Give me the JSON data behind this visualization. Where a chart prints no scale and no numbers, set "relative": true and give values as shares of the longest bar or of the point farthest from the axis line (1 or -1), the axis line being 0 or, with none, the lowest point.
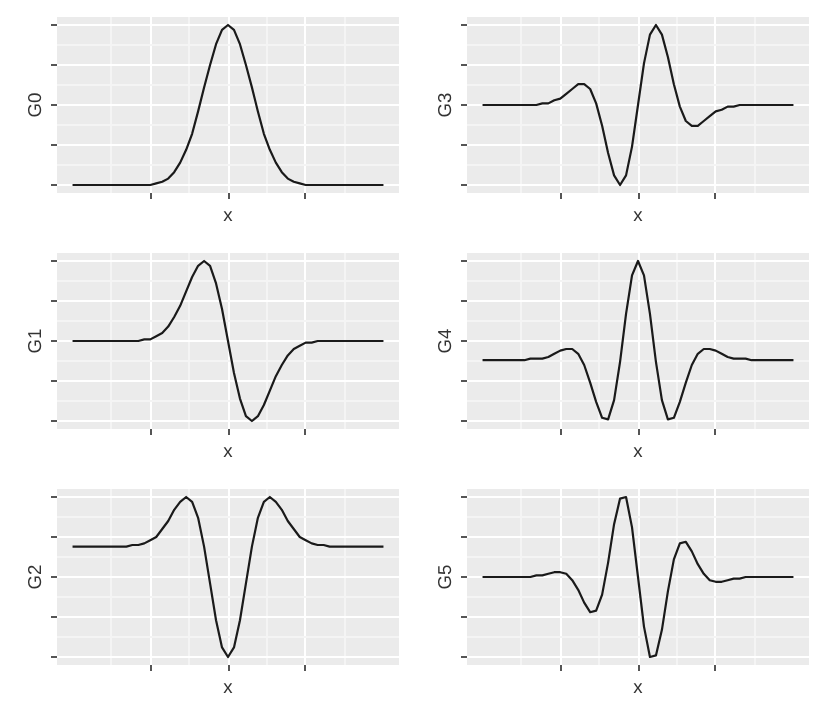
{
  "chart_data": [
    {
      "type": "line",
      "relative": true,
      "grid": true,
      "xlabel": "x",
      "ylabel": "G0",
      "categories": [
        null,
        null,
        null,
        null,
        null,
        null,
        null,
        null,
        null,
        null,
        null,
        null,
        null,
        null,
        null,
        null,
        null,
        null,
        null,
        null,
        null,
        null,
        null,
        null,
        null,
        null,
        null,
        null,
        null,
        null,
        null,
        null,
        null,
        null,
        null,
        null,
        null,
        null,
        null,
        null,
        null,
        null,
        null,
        null,
        null,
        null,
        null,
        null,
        null,
        null,
        null,
        null,
        null
      ],
      "series": [
        {
          "color": "#1a1a1a",
          "values": [
            0,
            0,
            0,
            0,
            0,
            0,
            0,
            0,
            0,
            0,
            0,
            0,
            0,
            0,
            0.01,
            0.02,
            0.04,
            0.08,
            0.14,
            0.22,
            0.32,
            0.46,
            0.61,
            0.75,
            0.88,
            0.97,
            1,
            0.97,
            0.88,
            0.75,
            0.61,
            0.46,
            0.32,
            0.22,
            0.14,
            0.08,
            0.04,
            0.02,
            0.01,
            0,
            0,
            0,
            0,
            0,
            0,
            0,
            0,
            0,
            0,
            0,
            0,
            0,
            0
          ]
        }
      ]
    },
    {
      "type": "line",
      "relative": true,
      "grid": true,
      "xlabel": "x",
      "ylabel": "G3",
      "categories": [
        null,
        null,
        null,
        null,
        null,
        null,
        null,
        null,
        null,
        null,
        null,
        null,
        null,
        null,
        null,
        null,
        null,
        null,
        null,
        null,
        null,
        null,
        null,
        null,
        null,
        null,
        null,
        null,
        null,
        null,
        null,
        null,
        null,
        null,
        null,
        null,
        null,
        null,
        null,
        null,
        null,
        null,
        null,
        null,
        null,
        null,
        null,
        null,
        null,
        null,
        null,
        null,
        null
      ],
      "series": [
        {
          "color": "#1a1a1a",
          "values": [
            0.5,
            0.5,
            0.5,
            0.5,
            0.5,
            0.5,
            0.5,
            0.5,
            0.5,
            0.5,
            0.51,
            0.51,
            0.53,
            0.54,
            0.57,
            0.6,
            0.63,
            0.63,
            0.6,
            0.51,
            0.37,
            0.2,
            0.06,
            0,
            0.06,
            0.24,
            0.5,
            0.76,
            0.94,
            1,
            0.94,
            0.8,
            0.63,
            0.49,
            0.4,
            0.37,
            0.37,
            0.4,
            0.43,
            0.46,
            0.47,
            0.49,
            0.49,
            0.5,
            0.5,
            0.5,
            0.5,
            0.5,
            0.5,
            0.5,
            0.5,
            0.5,
            0.5
          ]
        }
      ]
    },
    {
      "type": "line",
      "relative": true,
      "grid": true,
      "xlabel": "x",
      "ylabel": "G1",
      "categories": [
        null,
        null,
        null,
        null,
        null,
        null,
        null,
        null,
        null,
        null,
        null,
        null,
        null,
        null,
        null,
        null,
        null,
        null,
        null,
        null,
        null,
        null,
        null,
        null,
        null,
        null,
        null,
        null,
        null,
        null,
        null,
        null,
        null,
        null,
        null,
        null,
        null,
        null,
        null,
        null,
        null,
        null,
        null,
        null,
        null,
        null,
        null,
        null,
        null,
        null,
        null,
        null,
        null
      ],
      "series": [
        {
          "color": "#1a1a1a",
          "values": [
            0.5,
            0.5,
            0.5,
            0.5,
            0.5,
            0.5,
            0.5,
            0.5,
            0.5,
            0.5,
            0.5,
            0.5,
            0.51,
            0.51,
            0.53,
            0.55,
            0.59,
            0.65,
            0.72,
            0.81,
            0.9,
            0.97,
            1,
            0.97,
            0.86,
            0.7,
            0.5,
            0.3,
            0.14,
            0.03,
            0,
            0.03,
            0.1,
            0.19,
            0.28,
            0.35,
            0.41,
            0.45,
            0.47,
            0.49,
            0.49,
            0.5,
            0.5,
            0.5,
            0.5,
            0.5,
            0.5,
            0.5,
            0.5,
            0.5,
            0.5,
            0.5,
            0.5
          ]
        }
      ]
    },
    {
      "type": "line",
      "relative": true,
      "grid": true,
      "xlabel": "x",
      "ylabel": "G4",
      "categories": [
        null,
        null,
        null,
        null,
        null,
        null,
        null,
        null,
        null,
        null,
        null,
        null,
        null,
        null,
        null,
        null,
        null,
        null,
        null,
        null,
        null,
        null,
        null,
        null,
        null,
        null,
        null,
        null,
        null,
        null,
        null,
        null,
        null,
        null,
        null,
        null,
        null,
        null,
        null,
        null,
        null,
        null,
        null,
        null,
        null,
        null,
        null,
        null,
        null,
        null,
        null,
        null,
        null
      ],
      "series": [
        {
          "color": "#1a1a1a",
          "values": [
            0.38,
            0.38,
            0.38,
            0.38,
            0.38,
            0.38,
            0.38,
            0.38,
            0.39,
            0.39,
            0.39,
            0.4,
            0.42,
            0.44,
            0.45,
            0.45,
            0.42,
            0.35,
            0.24,
            0.12,
            0.02,
            0.01,
            0.13,
            0.37,
            0.67,
            0.91,
            1,
            0.91,
            0.67,
            0.37,
            0.13,
            0.01,
            0.02,
            0.12,
            0.24,
            0.35,
            0.42,
            0.45,
            0.45,
            0.44,
            0.42,
            0.4,
            0.39,
            0.39,
            0.39,
            0.38,
            0.38,
            0.38,
            0.38,
            0.38,
            0.38,
            0.38,
            0.38
          ]
        }
      ]
    },
    {
      "type": "line",
      "relative": true,
      "grid": true,
      "xlabel": "x",
      "ylabel": "G2",
      "categories": [
        null,
        null,
        null,
        null,
        null,
        null,
        null,
        null,
        null,
        null,
        null,
        null,
        null,
        null,
        null,
        null,
        null,
        null,
        null,
        null,
        null,
        null,
        null,
        null,
        null,
        null,
        null,
        null,
        null,
        null,
        null,
        null,
        null,
        null,
        null,
        null,
        null,
        null,
        null,
        null,
        null,
        null,
        null,
        null,
        null,
        null,
        null,
        null,
        null,
        null,
        null,
        null,
        null
      ],
      "series": [
        {
          "color": "#1a1a1a",
          "values": [
            0.69,
            0.69,
            0.69,
            0.69,
            0.69,
            0.69,
            0.69,
            0.69,
            0.69,
            0.69,
            0.7,
            0.7,
            0.71,
            0.73,
            0.75,
            0.8,
            0.85,
            0.92,
            0.97,
            1,
            0.97,
            0.87,
            0.69,
            0.46,
            0.23,
            0.06,
            0,
            0.06,
            0.23,
            0.46,
            0.69,
            0.87,
            0.97,
            1,
            0.97,
            0.92,
            0.85,
            0.8,
            0.75,
            0.73,
            0.71,
            0.7,
            0.7,
            0.69,
            0.69,
            0.69,
            0.69,
            0.69,
            0.69,
            0.69,
            0.69,
            0.69,
            0.69
          ]
        }
      ]
    },
    {
      "type": "line",
      "relative": true,
      "grid": true,
      "xlabel": "x",
      "ylabel": "G5",
      "categories": [
        null,
        null,
        null,
        null,
        null,
        null,
        null,
        null,
        null,
        null,
        null,
        null,
        null,
        null,
        null,
        null,
        null,
        null,
        null,
        null,
        null,
        null,
        null,
        null,
        null,
        null,
        null,
        null,
        null,
        null,
        null,
        null,
        null,
        null,
        null,
        null,
        null,
        null,
        null,
        null,
        null,
        null,
        null,
        null,
        null,
        null,
        null,
        null,
        null,
        null,
        null,
        null,
        null
      ],
      "series": [
        {
          "color": "#1a1a1a",
          "values": [
            0.5,
            0.5,
            0.5,
            0.5,
            0.5,
            0.5,
            0.5,
            0.5,
            0.5,
            0.51,
            0.51,
            0.52,
            0.53,
            0.53,
            0.52,
            0.48,
            0.42,
            0.34,
            0.28,
            0.29,
            0.39,
            0.59,
            0.83,
            0.99,
            1,
            0.81,
            0.5,
            0.19,
            0,
            0.01,
            0.17,
            0.41,
            0.61,
            0.71,
            0.72,
            0.66,
            0.58,
            0.52,
            0.48,
            0.47,
            0.47,
            0.48,
            0.49,
            0.49,
            0.5,
            0.5,
            0.5,
            0.5,
            0.5,
            0.5,
            0.5,
            0.5,
            0.5
          ]
        }
      ]
    }
  ]
}
